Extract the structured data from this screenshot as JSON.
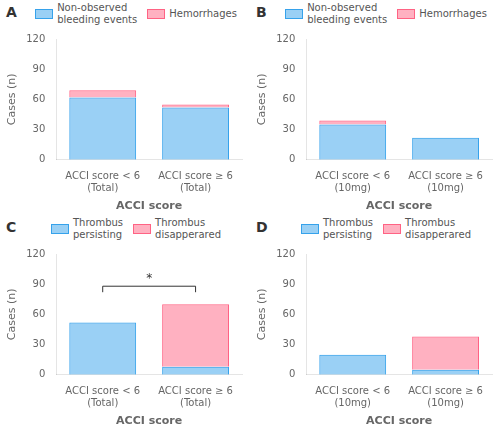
{
  "chart_data": [
    {
      "type": "bar",
      "title": "A",
      "categories": [
        "ACCI score < 6\n(Total)",
        "ACCI score ≥ 6\n(Total)"
      ],
      "series": [
        {
          "name": "Non-observed\nbleeding events",
          "values": [
            62,
            52
          ]
        },
        {
          "name": "Hemorrhages",
          "values": [
            7,
            3
          ]
        }
      ],
      "xlabel": "ACCI score",
      "ylabel": "Cases (n)",
      "ylim": [
        0,
        120
      ],
      "yticks": [
        0,
        30,
        60,
        90,
        120
      ],
      "stacked": true,
      "grid": false,
      "legend": "top"
    },
    {
      "type": "bar",
      "title": "B",
      "categories": [
        "ACCI score < 6\n(10mg)",
        "ACCI score ≥ 6\n(10mg)"
      ],
      "series": [
        {
          "name": "Non-observed\nbleeding events",
          "values": [
            35,
            22
          ]
        },
        {
          "name": "Hemorrhages",
          "values": [
            4,
            0
          ]
        }
      ],
      "xlabel": "ACCI score",
      "ylabel": "Cases (n)",
      "ylim": [
        0,
        120
      ],
      "yticks": [
        0,
        30,
        60,
        90,
        120
      ],
      "stacked": true,
      "grid": false,
      "legend": "top"
    },
    {
      "type": "bar",
      "title": "C",
      "categories": [
        "ACCI score < 6\n(Total)",
        "ACCI score ≥ 6\n(Total)"
      ],
      "series": [
        {
          "name": "Thrombus\npersisting",
          "values": [
            52,
            8
          ]
        },
        {
          "name": "Thrombus\ndisapperared",
          "values": [
            0,
            62
          ]
        }
      ],
      "xlabel": "ACCI score",
      "ylabel": "Cases (n)",
      "ylim": [
        0,
        120
      ],
      "yticks": [
        0,
        30,
        60,
        90,
        120
      ],
      "stacked": true,
      "grid": false,
      "legend": "top",
      "annotations": [
        {
          "text": "*",
          "x": [
            "ACCI score < 6\n(Total)",
            "ACCI score ≥ 6\n(Total)"
          ],
          "y": 88
        }
      ]
    },
    {
      "type": "bar",
      "title": "D",
      "categories": [
        "ACCI score < 6\n(10mg)",
        "ACCI score ≥ 6\n(10mg)"
      ],
      "series": [
        {
          "name": "Thrombus\npersisting",
          "values": [
            20,
            5
          ]
        },
        {
          "name": "Thrombus\ndisapperared",
          "values": [
            0,
            33
          ]
        }
      ],
      "xlabel": "ACCI score",
      "ylabel": "Cases (n)",
      "ylim": [
        0,
        120
      ],
      "yticks": [
        0,
        30,
        60,
        90,
        120
      ],
      "stacked": true,
      "grid": false,
      "legend": "top"
    }
  ]
}
